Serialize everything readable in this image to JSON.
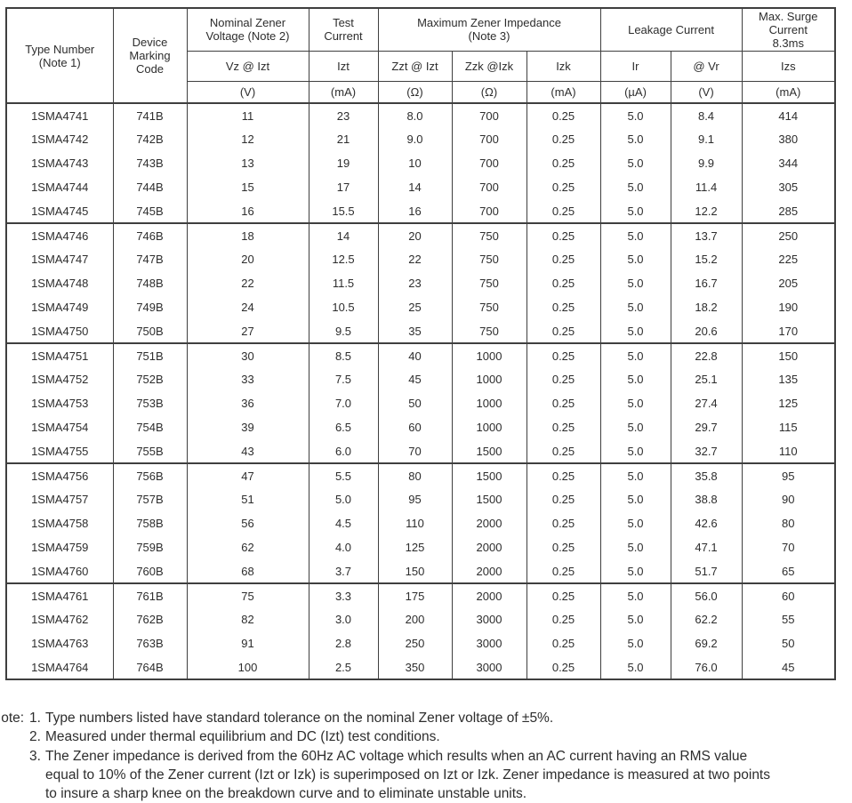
{
  "document": {
    "background": "#ffffff",
    "text_color": "#2d2d2d",
    "border_color": "#3f3f3f"
  },
  "table": {
    "header": {
      "type_number": [
        "Type Number",
        "(Note 1)"
      ],
      "device_marking_code": [
        "Device",
        "Marking",
        "Code"
      ],
      "nominal_zener_voltage": [
        "Nominal Zener",
        "Voltage (Note 2)"
      ],
      "test_current": [
        "Test",
        "Current"
      ],
      "maximum_zener_impedance": [
        "Maximum Zener Impedance",
        "(Note 3)"
      ],
      "leakage_current": [
        "Leakage Current"
      ],
      "max_surge_current": [
        "Max. Surge",
        "Current",
        "8.3ms"
      ],
      "symbols": [
        "Vz @ Izt",
        "Izt",
        "Zzt @ Izt",
        "Zzk @Izk",
        "Izk",
        "Ir",
        "@ Vr",
        "Izs"
      ],
      "units": [
        "(V)",
        "(mA)",
        "(Ω)",
        "(Ω)",
        "(mA)",
        "(µA)",
        "(V)",
        "(mA)"
      ]
    },
    "columns": [
      "type-number",
      "device-marking-code",
      "vz-at-izt",
      "izt",
      "zzt-at-izt",
      "zzk-at-izk",
      "izk",
      "ir",
      "at-vr",
      "izs"
    ],
    "groups": [
      [
        [
          "1SMA4741",
          "741B",
          "11",
          "23",
          "8.0",
          "700",
          "0.25",
          "5.0",
          "8.4",
          "414"
        ],
        [
          "1SMA4742",
          "742B",
          "12",
          "21",
          "9.0",
          "700",
          "0.25",
          "5.0",
          "9.1",
          "380"
        ],
        [
          "1SMA4743",
          "743B",
          "13",
          "19",
          "10",
          "700",
          "0.25",
          "5.0",
          "9.9",
          "344"
        ],
        [
          "1SMA4744",
          "744B",
          "15",
          "17",
          "14",
          "700",
          "0.25",
          "5.0",
          "11.4",
          "305"
        ],
        [
          "1SMA4745",
          "745B",
          "16",
          "15.5",
          "16",
          "700",
          "0.25",
          "5.0",
          "12.2",
          "285"
        ]
      ],
      [
        [
          "1SMA4746",
          "746B",
          "18",
          "14",
          "20",
          "750",
          "0.25",
          "5.0",
          "13.7",
          "250"
        ],
        [
          "1SMA4747",
          "747B",
          "20",
          "12.5",
          "22",
          "750",
          "0.25",
          "5.0",
          "15.2",
          "225"
        ],
        [
          "1SMA4748",
          "748B",
          "22",
          "11.5",
          "23",
          "750",
          "0.25",
          "5.0",
          "16.7",
          "205"
        ],
        [
          "1SMA4749",
          "749B",
          "24",
          "10.5",
          "25",
          "750",
          "0.25",
          "5.0",
          "18.2",
          "190"
        ],
        [
          "1SMA4750",
          "750B",
          "27",
          "9.5",
          "35",
          "750",
          "0.25",
          "5.0",
          "20.6",
          "170"
        ]
      ],
      [
        [
          "1SMA4751",
          "751B",
          "30",
          "8.5",
          "40",
          "1000",
          "0.25",
          "5.0",
          "22.8",
          "150"
        ],
        [
          "1SMA4752",
          "752B",
          "33",
          "7.5",
          "45",
          "1000",
          "0.25",
          "5.0",
          "25.1",
          "135"
        ],
        [
          "1SMA4753",
          "753B",
          "36",
          "7.0",
          "50",
          "1000",
          "0.25",
          "5.0",
          "27.4",
          "125"
        ],
        [
          "1SMA4754",
          "754B",
          "39",
          "6.5",
          "60",
          "1000",
          "0.25",
          "5.0",
          "29.7",
          "115"
        ],
        [
          "1SMA4755",
          "755B",
          "43",
          "6.0",
          "70",
          "1500",
          "0.25",
          "5.0",
          "32.7",
          "110"
        ]
      ],
      [
        [
          "1SMA4756",
          "756B",
          "47",
          "5.5",
          "80",
          "1500",
          "0.25",
          "5.0",
          "35.8",
          "95"
        ],
        [
          "1SMA4757",
          "757B",
          "51",
          "5.0",
          "95",
          "1500",
          "0.25",
          "5.0",
          "38.8",
          "90"
        ],
        [
          "1SMA4758",
          "758B",
          "56",
          "4.5",
          "110",
          "2000",
          "0.25",
          "5.0",
          "42.6",
          "80"
        ],
        [
          "1SMA4759",
          "759B",
          "62",
          "4.0",
          "125",
          "2000",
          "0.25",
          "5.0",
          "47.1",
          "70"
        ],
        [
          "1SMA4760",
          "760B",
          "68",
          "3.7",
          "150",
          "2000",
          "0.25",
          "5.0",
          "51.7",
          "65"
        ]
      ],
      [
        [
          "1SMA4761",
          "761B",
          "75",
          "3.3",
          "175",
          "2000",
          "0.25",
          "5.0",
          "56.0",
          "60"
        ],
        [
          "1SMA4762",
          "762B",
          "82",
          "3.0",
          "200",
          "3000",
          "0.25",
          "5.0",
          "62.2",
          "55"
        ],
        [
          "1SMA4763",
          "763B",
          "91",
          "2.8",
          "250",
          "3000",
          "0.25",
          "5.0",
          "69.2",
          "50"
        ],
        [
          "1SMA4764",
          "764B",
          "100",
          "2.5",
          "350",
          "3000",
          "0.25",
          "5.0",
          "76.0",
          "45"
        ]
      ]
    ]
  },
  "notes": {
    "label": "Note:",
    "items": [
      {
        "num": "1.",
        "lines": [
          "Type numbers listed have standard tolerance on the nominal Zener voltage of ±5%."
        ]
      },
      {
        "num": "2.",
        "lines": [
          "Measured under thermal equilibrium and DC (Izt) test conditions."
        ]
      },
      {
        "num": "3.",
        "lines": [
          "The Zener impedance is derived from the 60Hz AC voltage which results when an AC current having an RMS value",
          "equal to 10% of the Zener current (Izt or Izk) is superimposed on Izt or Izk. Zener impedance is measured at two points",
          "to insure a sharp knee on the breakdown curve and to eliminate unstable units."
        ]
      }
    ]
  }
}
